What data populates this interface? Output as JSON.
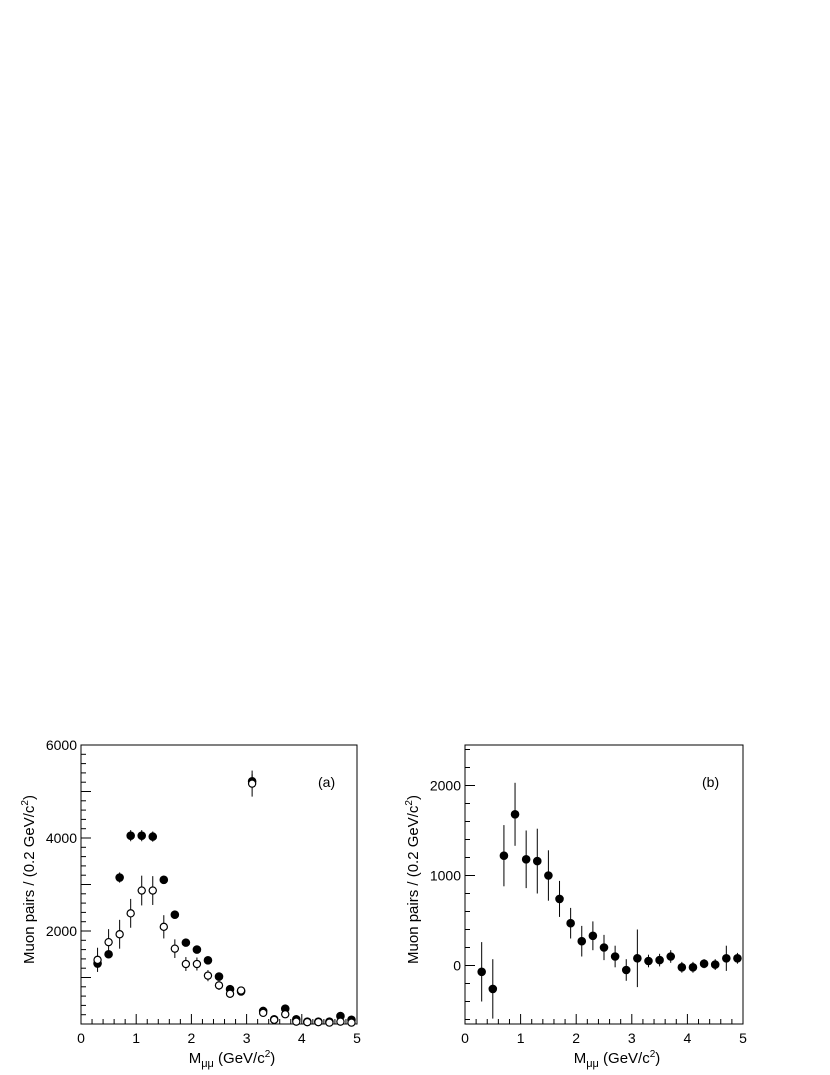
{
  "chart_data": [
    {
      "type": "scatter",
      "panel_label": "(a)",
      "xlabel": "M",
      "xlabel_subscript": "μμ",
      "xlabel_unit": "(GeV/c",
      "xlabel_unit_sup": "2",
      "xlabel_unit_end": ")",
      "ylabel": "Muon pairs / (0.2 GeV/c",
      "ylabel_sup": "2",
      "ylabel_end": ")",
      "xlim": [
        0,
        5
      ],
      "ylim": [
        0,
        6000
      ],
      "xticks": [
        0,
        1,
        2,
        3,
        4,
        5
      ],
      "yticks": [
        2000,
        4000,
        6000
      ],
      "grid": false,
      "series": [
        {
          "marker": "filled-circle",
          "x": [
            0.3,
            0.5,
            0.7,
            0.9,
            1.1,
            1.3,
            1.5,
            1.7,
            1.9,
            2.1,
            2.3,
            2.5,
            2.7,
            2.9,
            3.1,
            3.3,
            3.5,
            3.7,
            3.9,
            4.1,
            4.3,
            4.5,
            4.7,
            4.9
          ],
          "y": [
            1300,
            1500,
            3150,
            4050,
            4050,
            4030,
            3100,
            2350,
            1750,
            1600,
            1370,
            1020,
            750,
            700,
            5220,
            280,
            100,
            330,
            100,
            50,
            50,
            50,
            170,
            90
          ],
          "err": [
            80,
            80,
            110,
            120,
            120,
            110,
            80,
            70,
            60,
            60,
            50,
            40,
            40,
            40,
            150,
            30,
            30,
            40,
            25,
            20,
            20,
            20,
            25,
            20
          ]
        },
        {
          "marker": "open-circle",
          "x": [
            0.3,
            0.5,
            0.7,
            0.9,
            1.1,
            1.3,
            1.5,
            1.7,
            1.9,
            2.1,
            2.3,
            2.5,
            2.7,
            2.9,
            3.1,
            3.3,
            3.5,
            3.7,
            3.9,
            4.1,
            4.3,
            4.5,
            4.7,
            4.9
          ],
          "y": [
            1380,
            1760,
            1930,
            2380,
            2870,
            2870,
            2090,
            1620,
            1290,
            1290,
            1040,
            830,
            650,
            720,
            5170,
            240,
            90,
            210,
            50,
            40,
            40,
            30,
            50,
            30
          ],
          "err": [
            260,
            280,
            310,
            310,
            320,
            310,
            250,
            200,
            150,
            140,
            120,
            100,
            80,
            80,
            280,
            40,
            30,
            40,
            20,
            15,
            15,
            15,
            15,
            15
          ]
        }
      ]
    },
    {
      "type": "scatter",
      "panel_label": "(b)",
      "xlabel": "M",
      "xlabel_subscript": "μμ",
      "xlabel_unit": "(GeV/c",
      "xlabel_unit_sup": "2",
      "xlabel_unit_end": ")",
      "ylabel": "Muon pairs / (0.2 GeV/c",
      "ylabel_sup": "2",
      "ylabel_end": ")",
      "xlim": [
        0,
        5
      ],
      "ylim": [
        -650,
        2450
      ],
      "xticks": [
        0,
        1,
        2,
        3,
        4,
        5
      ],
      "yticks": [
        0,
        1000,
        2000
      ],
      "grid": false,
      "series": [
        {
          "marker": "filled-circle",
          "x": [
            0.3,
            0.5,
            0.7,
            0.9,
            1.1,
            1.3,
            1.5,
            1.7,
            1.9,
            2.1,
            2.3,
            2.5,
            2.7,
            2.9,
            3.1,
            3.3,
            3.5,
            3.7,
            3.9,
            4.1,
            4.3,
            4.5,
            4.7,
            4.9
          ],
          "y": [
            -70,
            -260,
            1220,
            1680,
            1180,
            1160,
            1000,
            740,
            470,
            270,
            330,
            200,
            100,
            -50,
            80,
            50,
            60,
            100,
            -20,
            -20,
            20,
            10,
            80,
            80
          ],
          "err": [
            330,
            330,
            340,
            350,
            320,
            360,
            280,
            200,
            170,
            170,
            160,
            140,
            120,
            120,
            320,
            70,
            70,
            70,
            60,
            60,
            50,
            60,
            140,
            60
          ]
        }
      ]
    }
  ]
}
